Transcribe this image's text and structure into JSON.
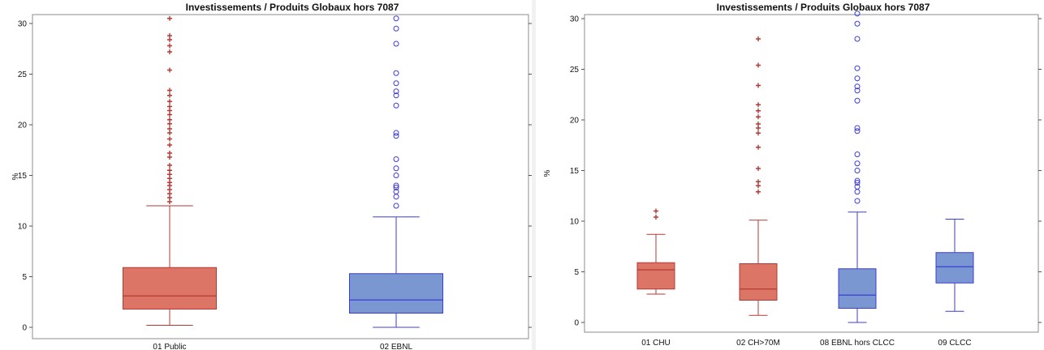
{
  "chart_data": [
    {
      "type": "boxplot",
      "title": "Investissements / Produits Globaux hors 7087",
      "xlabel": "",
      "ylabel": "%",
      "ylim": [
        -0.5,
        30.6
      ],
      "yticks": [
        0,
        5,
        10,
        15,
        20,
        25,
        30
      ],
      "ytick_labels": [
        "0",
        "5",
        "10",
        "15",
        "20",
        "25",
        "30"
      ],
      "grid": false,
      "categories": [
        "01 Public",
        "02 EBNL"
      ],
      "boxes": [
        {
          "category": "01 Public",
          "whisker_low": 0.2,
          "q1": 1.8,
          "median": 3.1,
          "q3": 5.9,
          "whisker_high": 12.0,
          "outliers": [
            12.4,
            12.8,
            13.2,
            13.6,
            14.0,
            14.3,
            14.7,
            15.1,
            15.5,
            16.0,
            16.8,
            17.2,
            18.0,
            18.6,
            19.2,
            19.6,
            20.1,
            20.5,
            21.0,
            21.4,
            21.8,
            22.3,
            22.9,
            23.4,
            25.4,
            27.2,
            27.8,
            28.4,
            28.8,
            30.5
          ],
          "color": "#dd7566",
          "edge": "#b33a34",
          "marker": "plus"
        },
        {
          "category": "02 EBNL",
          "whisker_low": 0.0,
          "q1": 1.4,
          "median": 2.7,
          "q3": 5.3,
          "whisker_high": 10.9,
          "outliers": [
            12.0,
            12.9,
            13.4,
            13.8,
            14.0,
            15.0,
            15.7,
            16.6,
            18.9,
            19.2,
            21.9,
            22.9,
            23.3,
            24.1,
            25.1,
            28.0,
            29.5,
            30.5
          ],
          "color": "#7a97d1",
          "edge": "#3d3dd4",
          "marker": "circle"
        }
      ]
    },
    {
      "type": "boxplot",
      "title": "Investissements / Produits Globaux hors 7087",
      "xlabel": "",
      "ylabel": "%",
      "ylim": [
        -0.5,
        30.6
      ],
      "yticks": [
        0,
        5,
        10,
        15,
        20,
        25,
        30
      ],
      "ytick_labels": [
        "0",
        "5",
        "10",
        "15",
        "20",
        "25",
        "30"
      ],
      "grid": false,
      "categories": [
        "01 CHU",
        "02 CH>70M",
        "08 EBNL hors CLCC",
        "09 CLCC"
      ],
      "boxes": [
        {
          "category": "01 CHU",
          "whisker_low": 2.8,
          "q1": 3.3,
          "median": 5.2,
          "q3": 5.9,
          "whisker_high": 8.7,
          "outliers": [
            10.4,
            11.0
          ],
          "color": "#dd7566",
          "edge": "#b33a34",
          "marker": "plus"
        },
        {
          "category": "02 CH>70M",
          "whisker_low": 0.7,
          "q1": 2.2,
          "median": 3.3,
          "q3": 5.8,
          "whisker_high": 10.1,
          "outliers": [
            12.9,
            13.5,
            13.9,
            15.2,
            17.3,
            18.7,
            19.2,
            19.6,
            20.3,
            20.9,
            21.5,
            23.4,
            25.4,
            28.0
          ],
          "color": "#dd7566",
          "edge": "#b33a34",
          "marker": "plus"
        },
        {
          "category": "08 EBNL hors CLCC",
          "whisker_low": 0.0,
          "q1": 1.4,
          "median": 2.7,
          "q3": 5.3,
          "whisker_high": 10.9,
          "outliers": [
            12.0,
            12.9,
            13.4,
            13.8,
            14.0,
            15.0,
            15.7,
            16.6,
            18.9,
            19.2,
            21.9,
            22.9,
            23.3,
            24.1,
            25.1,
            28.0,
            29.5,
            30.5
          ],
          "color": "#7a97d1",
          "edge": "#3d3dd4",
          "marker": "circle"
        },
        {
          "category": "09 CLCC",
          "whisker_low": 1.1,
          "q1": 3.9,
          "median": 5.5,
          "q3": 6.9,
          "whisker_high": 10.2,
          "outliers": [],
          "color": "#7a97d1",
          "edge": "#3d3dd4",
          "marker": "circle"
        }
      ]
    }
  ]
}
